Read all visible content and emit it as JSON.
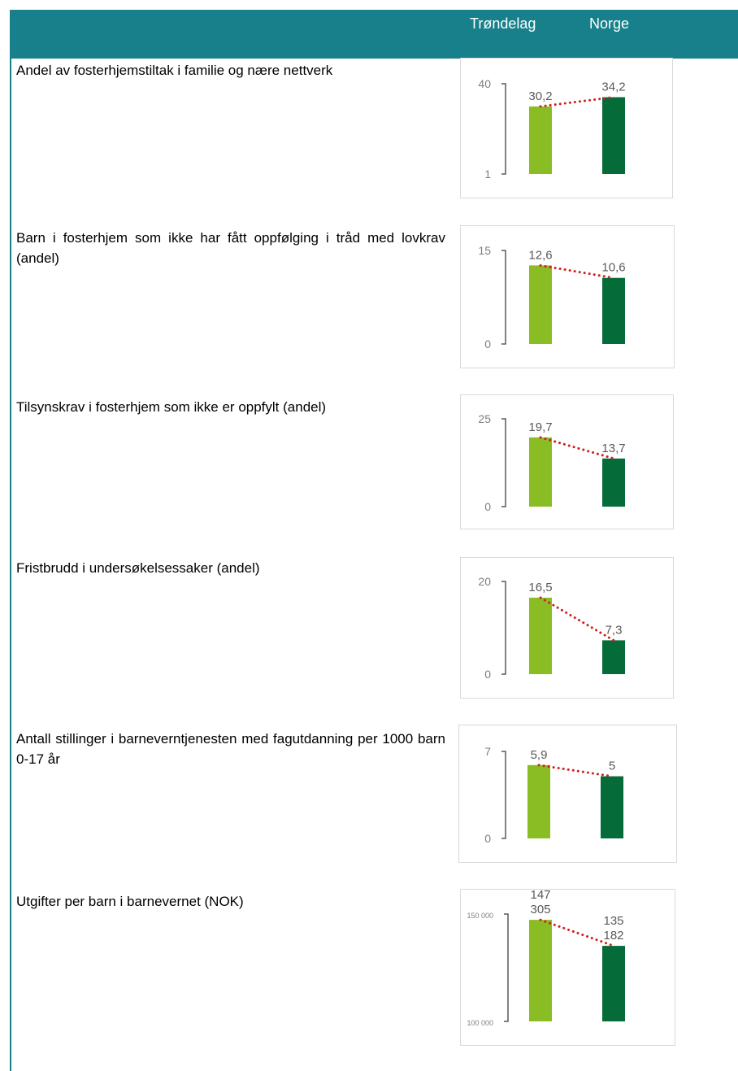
{
  "header": {
    "col1": "Trøndelag",
    "col2": "Norge"
  },
  "colors": {
    "header_bg": "#17808a",
    "trondelag": "#8abd24",
    "norge": "#056b38",
    "connector": "#d0201c",
    "axis": "#595959"
  },
  "rows": [
    {
      "label": "Andel av fosterhjemstiltak i familie og nære nettverk"
    },
    {
      "label": "Barn i fosterhjem som ikke har fått oppfølging i tråd med lovkrav (andel)"
    },
    {
      "label": "Tilsynskrav i fosterhjem som ikke er oppfylt (andel)"
    },
    {
      "label": "Fristbrudd i undersøkelsessaker (andel)"
    },
    {
      "label": "Antall stillinger i barneverntjenesten med fagutdanning per 1000 barn 0-17 år"
    },
    {
      "label": "Utgifter per barn i barnevernet (NOK)"
    }
  ],
  "chart_data": [
    {
      "type": "bar",
      "categories": [
        "Trøndelag",
        "Norge"
      ],
      "values": [
        30.2,
        34.2
      ],
      "value_labels": [
        "30,2",
        "34,2"
      ],
      "ylim": [
        1,
        40
      ],
      "tick_labels": [
        "40",
        "1"
      ]
    },
    {
      "type": "bar",
      "categories": [
        "Trøndelag",
        "Norge"
      ],
      "values": [
        12.6,
        10.6
      ],
      "value_labels": [
        "12,6",
        "10,6"
      ],
      "ylim": [
        0,
        15
      ],
      "tick_labels": [
        "15",
        "0"
      ]
    },
    {
      "type": "bar",
      "categories": [
        "Trøndelag",
        "Norge"
      ],
      "values": [
        19.7,
        13.7
      ],
      "value_labels": [
        "19,7",
        "13,7"
      ],
      "ylim": [
        0,
        25
      ],
      "tick_labels": [
        "25",
        "0"
      ]
    },
    {
      "type": "bar",
      "categories": [
        "Trøndelag",
        "Norge"
      ],
      "values": [
        16.5,
        7.3
      ],
      "value_labels": [
        "16,5",
        "7,3"
      ],
      "ylim": [
        0,
        20
      ],
      "tick_labels": [
        "20",
        "0"
      ]
    },
    {
      "type": "bar",
      "categories": [
        "Trøndelag",
        "Norge"
      ],
      "values": [
        5.9,
        5
      ],
      "value_labels": [
        "5,9",
        "5"
      ],
      "ylim": [
        0,
        7
      ],
      "tick_labels": [
        "7",
        "0"
      ]
    },
    {
      "type": "bar",
      "categories": [
        "Trøndelag",
        "Norge"
      ],
      "values": [
        147305,
        135182
      ],
      "value_labels": [
        "147\n305",
        "135\n182"
      ],
      "ylim": [
        100000,
        150000
      ],
      "tick_labels": [
        "150 000",
        "100 000"
      ]
    }
  ]
}
